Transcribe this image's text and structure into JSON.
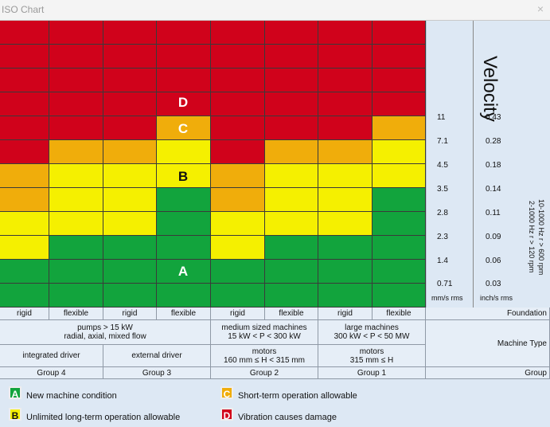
{
  "window": {
    "title": "ISO Chart",
    "close_glyph": "×"
  },
  "colors": {
    "red": "#d0021b",
    "orange": "#f0ad0b",
    "yellow": "#f5f000",
    "green": "#12a43d",
    "badge_red": "#d1021a",
    "badge_orange": "#f0ad0b",
    "badge_yellow": "#f5f000",
    "badge_green": "#12a43d"
  },
  "velocity_scale": {
    "title": "Velocity",
    "mm_unit": "mm/s rms",
    "in_unit": "inch/s rms",
    "frequency_ranges": [
      "10-1000 Hz r > 600 rpm",
      "2-1000 Hz r > 120 rpm"
    ],
    "ticks_mm": [
      "11",
      "7.1",
      "4.5",
      "3.5",
      "2.8",
      "2.3",
      "1.4",
      "0.71"
    ],
    "ticks_in": [
      "0.43",
      "0.28",
      "0.18",
      "0.14",
      "0.11",
      "0.09",
      "0.06",
      "0.03"
    ]
  },
  "severity_grid": {
    "zone_labels": [
      {
        "letter": "D"
      },
      {
        "letter": "C"
      },
      {
        "letter": "B"
      },
      {
        "letter": "A"
      }
    ],
    "columns": [
      {
        "zones": [
          "red",
          "red",
          "red",
          "red",
          "red",
          "red",
          "orange",
          "orange",
          "yellow",
          "yellow",
          "green",
          "green"
        ]
      },
      {
        "zones": [
          "red",
          "red",
          "red",
          "red",
          "red",
          "orange",
          "yellow",
          "yellow",
          "yellow",
          "green",
          "green",
          "green"
        ]
      },
      {
        "zones": [
          "red",
          "red",
          "red",
          "red",
          "red",
          "orange",
          "yellow",
          "yellow",
          "yellow",
          "green",
          "green",
          "green"
        ]
      },
      {
        "zones": [
          "red",
          "red",
          "red",
          "red",
          "orange",
          "yellow",
          "yellow",
          "green",
          "green",
          "green",
          "green",
          "green"
        ]
      },
      {
        "zones": [
          "red",
          "red",
          "red",
          "red",
          "red",
          "red",
          "orange",
          "orange",
          "yellow",
          "yellow",
          "green",
          "green"
        ]
      },
      {
        "zones": [
          "red",
          "red",
          "red",
          "red",
          "red",
          "orange",
          "yellow",
          "yellow",
          "yellow",
          "green",
          "green",
          "green"
        ]
      },
      {
        "zones": [
          "red",
          "red",
          "red",
          "red",
          "red",
          "orange",
          "yellow",
          "yellow",
          "yellow",
          "green",
          "green",
          "green"
        ]
      },
      {
        "zones": [
          "red",
          "red",
          "red",
          "red",
          "orange",
          "yellow",
          "yellow",
          "green",
          "green",
          "green",
          "green",
          "green"
        ]
      }
    ]
  },
  "classification_table": {
    "foundation": [
      "rigid",
      "flexible",
      "rigid",
      "flexible",
      "rigid",
      "flexible",
      "rigid",
      "flexible"
    ],
    "foundation_label": "Foundation",
    "machine_type": {
      "pumps": "pumps > 15 kW",
      "pumps_sub": "radial, axial, mixed flow",
      "medium": "medium sized machines",
      "medium_sub": "15 kW < P < 300 kW",
      "large": "large machines",
      "large_sub": "300 kW < P < 50 MW",
      "label": "Machine Type"
    },
    "drivers": {
      "integrated": "integrated driver",
      "external": "external driver",
      "motors_medium": "motors",
      "motors_medium_sub": "160 mm ≤ H < 315 mm",
      "motors_large": "motors",
      "motors_large_sub": "315 mm ≤ H"
    },
    "groups": [
      "Group 4",
      "Group 3",
      "Group 2",
      "Group 1"
    ],
    "group_label": "Group"
  },
  "legend": [
    {
      "letter": "A",
      "text": "New machine condition",
      "color": "green"
    },
    {
      "letter": "B",
      "text": "Unlimited long-term operation allowable",
      "color": "yellow"
    },
    {
      "letter": "C",
      "text": "Short-term operation allowable",
      "color": "orange"
    },
    {
      "letter": "D",
      "text": "Vibration causes damage",
      "color": "red"
    }
  ]
}
